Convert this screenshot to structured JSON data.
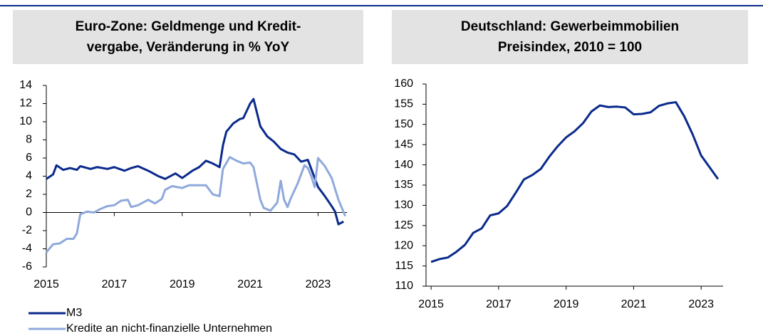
{
  "chart_data": [
    {
      "type": "line",
      "title": [
        "Euro-Zone: Geldmenge und Kredit-",
        "vergabe, Veränderung in % YoY"
      ],
      "xlim": [
        2015,
        2023.85
      ],
      "xticks": [
        2015,
        2017,
        2019,
        2021,
        2023
      ],
      "ylim": [
        -6,
        14
      ],
      "yticks": [
        -6,
        -4,
        -2,
        0,
        2,
        4,
        6,
        8,
        10,
        12,
        14
      ],
      "legend": "bottom-left",
      "series": [
        {
          "name": "M3",
          "color": "#0a2a8c",
          "x": [
            2015.0,
            2015.2,
            2015.3,
            2015.5,
            2015.7,
            2015.9,
            2016.0,
            2016.3,
            2016.5,
            2016.8,
            2017.0,
            2017.3,
            2017.5,
            2017.7,
            2018.0,
            2018.3,
            2018.5,
            2018.8,
            2019.0,
            2019.3,
            2019.5,
            2019.7,
            2019.9,
            2020.0,
            2020.1,
            2020.2,
            2020.3,
            2020.5,
            2020.7,
            2020.8,
            2021.0,
            2021.1,
            2021.3,
            2021.5,
            2021.7,
            2021.9,
            2022.1,
            2022.3,
            2022.5,
            2022.7,
            2022.8,
            2023.0,
            2023.2,
            2023.4,
            2023.5,
            2023.6,
            2023.75
          ],
          "values": [
            3.7,
            4.2,
            5.2,
            4.7,
            4.9,
            4.7,
            5.1,
            4.8,
            5.0,
            4.8,
            5.0,
            4.6,
            4.9,
            5.1,
            4.6,
            4.0,
            3.7,
            4.3,
            3.8,
            4.6,
            5.0,
            5.7,
            5.4,
            5.2,
            5.0,
            7.4,
            8.9,
            9.8,
            10.3,
            10.4,
            12.0,
            12.5,
            9.5,
            8.4,
            7.8,
            7.0,
            6.6,
            6.4,
            5.6,
            5.8,
            4.8,
            2.8,
            1.8,
            0.7,
            0.1,
            -1.3,
            -1.0
          ]
        },
        {
          "name": "Kredite an nicht-finanzielle Unternehmen",
          "color": "#8fa9dc",
          "x": [
            2015.0,
            2015.2,
            2015.4,
            2015.6,
            2015.8,
            2015.9,
            2016.0,
            2016.2,
            2016.4,
            2016.6,
            2016.8,
            2017.0,
            2017.2,
            2017.4,
            2017.5,
            2017.7,
            2017.9,
            2018.0,
            2018.2,
            2018.4,
            2018.5,
            2018.7,
            2019.0,
            2019.2,
            2019.5,
            2019.7,
            2019.9,
            2020.1,
            2020.2,
            2020.4,
            2020.6,
            2020.8,
            2021.0,
            2021.1,
            2021.3,
            2021.4,
            2021.6,
            2021.8,
            2021.9,
            2022.0,
            2022.1,
            2022.2,
            2022.4,
            2022.6,
            2022.7,
            2022.8,
            2022.9,
            2023.0,
            2023.2,
            2023.4,
            2023.6,
            2023.8
          ],
          "values": [
            -4.4,
            -3.5,
            -3.4,
            -2.9,
            -2.9,
            -2.3,
            -0.2,
            0.1,
            0.0,
            0.4,
            0.7,
            0.8,
            1.3,
            1.4,
            0.6,
            0.8,
            1.2,
            1.4,
            1.0,
            1.5,
            2.5,
            2.9,
            2.7,
            3.0,
            3.0,
            3.0,
            2.0,
            1.8,
            4.8,
            6.1,
            5.7,
            5.4,
            5.5,
            5.0,
            1.4,
            0.5,
            0.2,
            1.1,
            3.5,
            1.4,
            0.6,
            1.6,
            3.2,
            5.2,
            4.9,
            4.0,
            2.8,
            6.0,
            5.1,
            3.8,
            1.4,
            -0.4
          ]
        }
      ]
    },
    {
      "type": "line",
      "title": [
        "Deutschland: Gewerbeimmobilien",
        "Preisindex, 2010 = 100"
      ],
      "xlim": [
        2014.85,
        2023.65
      ],
      "xticks": [
        2015,
        2017,
        2019,
        2021,
        2023
      ],
      "ylim": [
        110,
        160
      ],
      "yticks": [
        110,
        115,
        120,
        125,
        130,
        135,
        140,
        145,
        150,
        155,
        160
      ],
      "series": [
        {
          "color": "#0a2a8c",
          "x": [
            2015.0,
            2015.25,
            2015.5,
            2015.75,
            2016.0,
            2016.25,
            2016.5,
            2016.75,
            2017.0,
            2017.25,
            2017.5,
            2017.75,
            2018.0,
            2018.25,
            2018.5,
            2018.75,
            2019.0,
            2019.25,
            2019.5,
            2019.75,
            2020.0,
            2020.25,
            2020.5,
            2020.75,
            2021.0,
            2021.25,
            2021.5,
            2021.75,
            2022.0,
            2022.25,
            2022.5,
            2022.75,
            2023.0,
            2023.5
          ],
          "values": [
            116,
            116.7,
            117.1,
            118.5,
            120.2,
            123.2,
            124.3,
            127.5,
            128,
            129.8,
            133,
            136.4,
            137.5,
            139,
            142,
            144.6,
            146.8,
            148.3,
            150.3,
            153.2,
            154.7,
            154.3,
            154.4,
            154.2,
            152.5,
            152.6,
            153,
            154.6,
            155.2,
            155.5,
            152,
            147.5,
            142.3,
            136.5
          ]
        }
      ]
    }
  ]
}
